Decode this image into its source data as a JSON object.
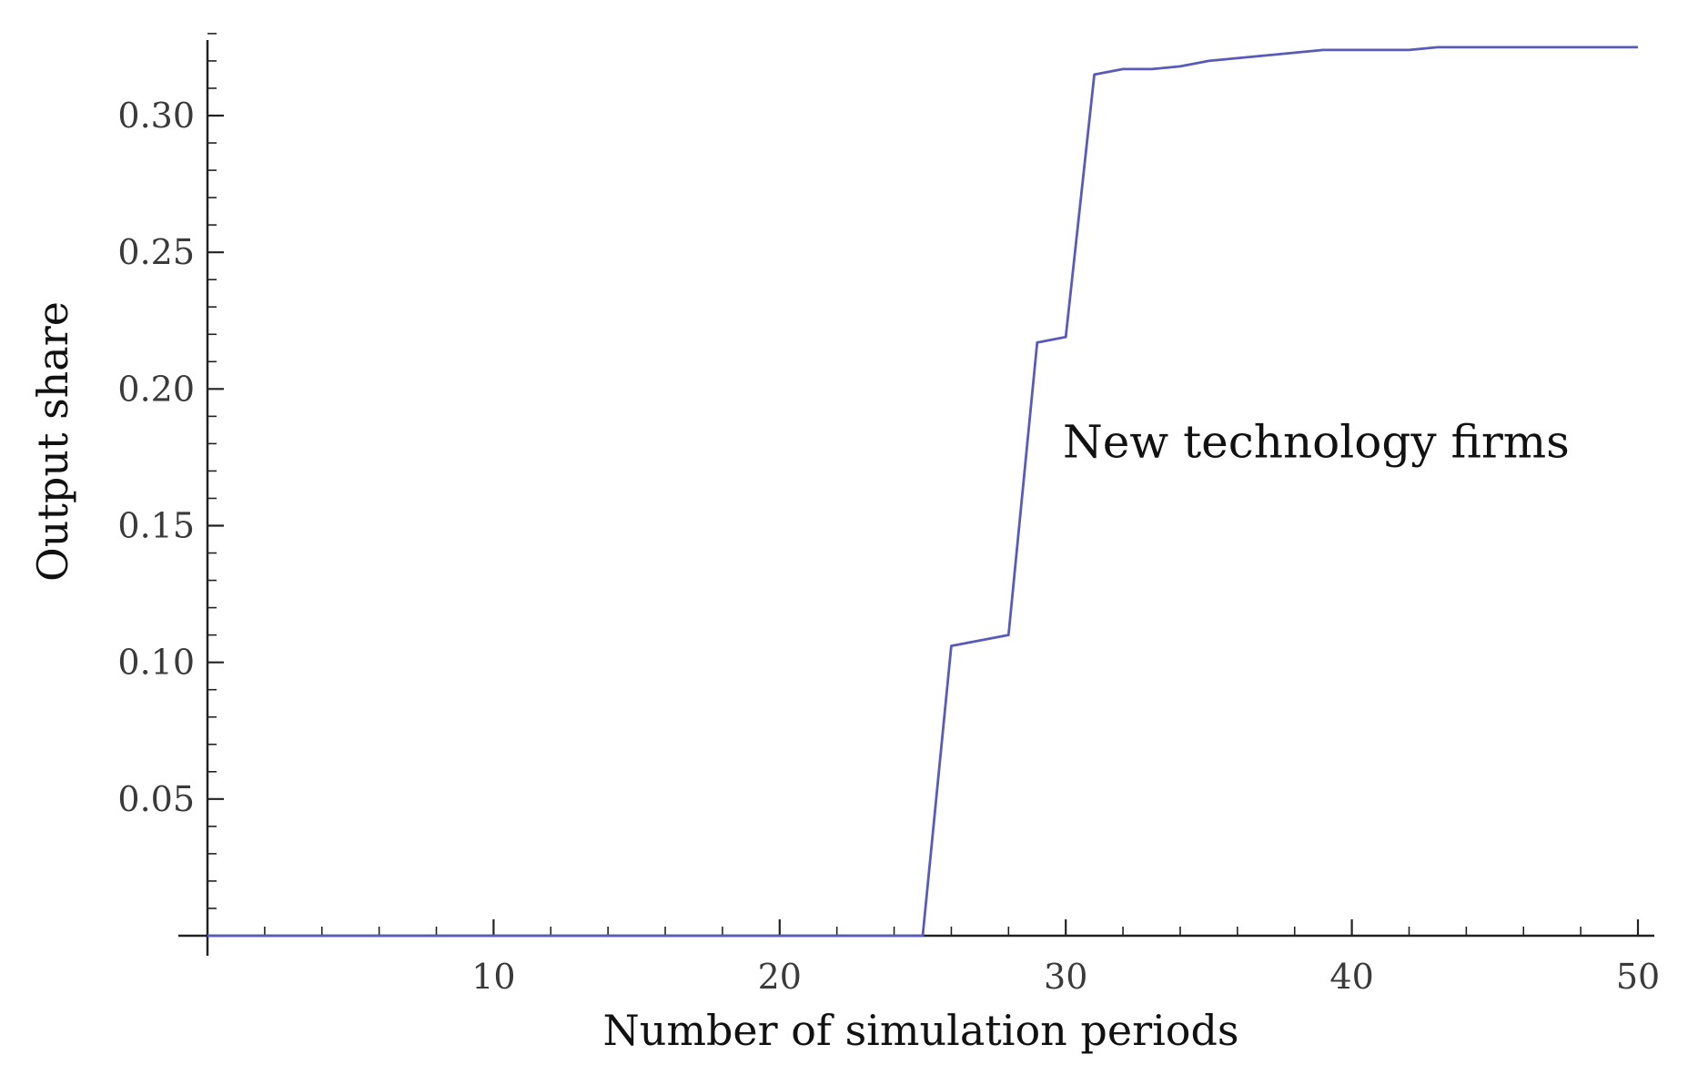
{
  "chart_data": {
    "type": "line",
    "title": "",
    "xlabel": "Number of simulation periods",
    "ylabel": "Output share",
    "xlim": [
      0,
      50.5
    ],
    "ylim": [
      0,
      0.33
    ],
    "xticks": [
      10,
      20,
      30,
      40,
      50
    ],
    "xtick_labels": [
      "10",
      "20",
      "30",
      "40",
      "50"
    ],
    "yticks": [
      0.05,
      0.1,
      0.15,
      0.2,
      0.25,
      0.3
    ],
    "ytick_labels": [
      "0.05",
      "0.10",
      "0.15",
      "0.20",
      "0.25",
      "0.30"
    ],
    "grid": false,
    "line_color": "#5a5ab8",
    "series": [
      {
        "x": [
          0,
          1,
          2,
          3,
          4,
          5,
          6,
          7,
          8,
          9,
          10,
          11,
          12,
          13,
          14,
          15,
          16,
          17,
          18,
          19,
          20,
          21,
          22,
          23,
          24,
          25,
          26,
          27,
          28,
          29,
          30,
          31,
          32,
          33,
          34,
          35,
          36,
          37,
          38,
          39,
          40,
          41,
          42,
          43,
          44,
          45,
          46,
          47,
          48,
          49,
          50
        ],
        "y": [
          0,
          0,
          0,
          0,
          0,
          0,
          0,
          0,
          0,
          0,
          0,
          0,
          0,
          0,
          0,
          0,
          0,
          0,
          0,
          0,
          0,
          0,
          0,
          0,
          0,
          0,
          0.106,
          0.108,
          0.11,
          0.217,
          0.219,
          0.315,
          0.317,
          0.317,
          0.318,
          0.32,
          0.321,
          0.322,
          0.323,
          0.324,
          0.324,
          0.324,
          0.324,
          0.325,
          0.325,
          0.325,
          0.325,
          0.325,
          0.325,
          0.325,
          0.325
        ]
      }
    ],
    "annotations": [
      {
        "text": "New technology firms",
        "x": 29.9,
        "y": 0.175
      }
    ]
  }
}
